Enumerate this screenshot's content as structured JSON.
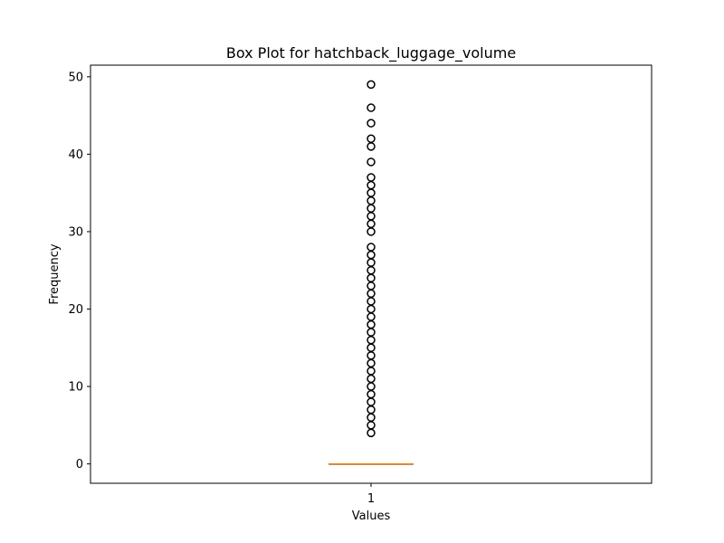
{
  "chart_data": {
    "type": "box",
    "title": "Box Plot for hatchback_luggage_volume",
    "xlabel": "Values",
    "ylabel": "Frequency",
    "categories": [
      "1"
    ],
    "ylim": [
      -2.5,
      51.5
    ],
    "yticks": [
      0,
      10,
      20,
      30,
      40,
      50
    ],
    "grid": false,
    "legend": "none",
    "series": [
      {
        "category": "1",
        "min": 0,
        "q1": 0,
        "median": 0,
        "q3": 0,
        "max": 0,
        "outliers": [
          4,
          5,
          6,
          7,
          8,
          9,
          10,
          11,
          12,
          13,
          14,
          15,
          16,
          17,
          18,
          19,
          20,
          21,
          22,
          23,
          24,
          25,
          26,
          27,
          28,
          30,
          31,
          32,
          33,
          34,
          35,
          36,
          37,
          39,
          41,
          42,
          44,
          46,
          49
        ]
      }
    ],
    "colors": {
      "median": "#ff7f0e",
      "box": "#000000",
      "outlier_edge": "#000000",
      "outlier_face": "#ffffff"
    }
  }
}
